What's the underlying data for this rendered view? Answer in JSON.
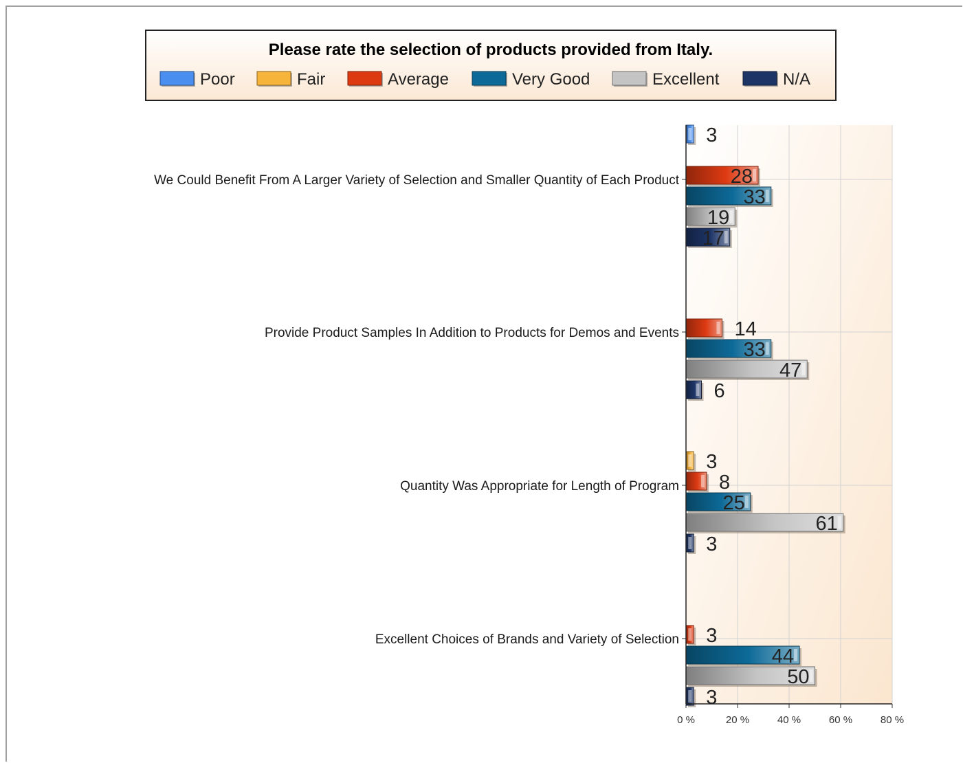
{
  "chart_data": {
    "type": "bar",
    "orientation": "horizontal",
    "title": "Please rate the selection of products provided from Italy.",
    "categories": [
      "We Could Benefit From A Larger Variety of Selection and Smaller Quantity of Each Product",
      "Provide Product Samples In Addition to Products for Demos and Events",
      "Quantity Was Appropriate for Length of Program",
      "Excellent Choices of Brands and Variety of Selection"
    ],
    "series": [
      {
        "name": "Poor",
        "color": "#4a8ff0",
        "values": [
          3,
          null,
          null,
          null
        ]
      },
      {
        "name": "Fair",
        "color": "#f7b43a",
        "values": [
          null,
          null,
          3,
          null
        ]
      },
      {
        "name": "Average",
        "color": "#dd3a12",
        "values": [
          28,
          14,
          8,
          3
        ]
      },
      {
        "name": "Very Good",
        "color": "#0d6a98",
        "values": [
          33,
          33,
          25,
          44
        ]
      },
      {
        "name": "Excellent",
        "color": "#c4c4c4",
        "values": [
          19,
          47,
          61,
          50
        ]
      },
      {
        "name": "N/A",
        "color": "#1d3466",
        "values": [
          17,
          6,
          3,
          3
        ]
      }
    ],
    "x_ticks": [
      "0 %",
      "20 %",
      "40 %",
      "60 %",
      "80 %"
    ],
    "xlim": [
      0,
      80
    ],
    "x_unit": "percent",
    "grid": true,
    "legend_position": "top"
  }
}
